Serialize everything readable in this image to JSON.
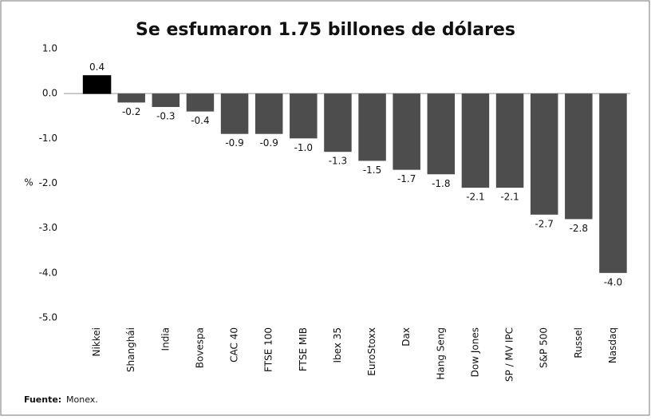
{
  "chart_data": {
    "type": "bar",
    "title": "Se esfumaron 1.75 billones de dólares",
    "y_label": "%",
    "source_label": "Fuente:",
    "source": "Monex.",
    "categories": [
      "Nikkei",
      "Shanghái",
      "India",
      "Bovespa",
      "CAC 40",
      "FTSE 100",
      "FTSE MIB",
      "Ibex 35",
      "EuroStoxx",
      "Dax",
      "Hang Seng",
      "Dow Jones",
      "SP / MV IPC",
      "S&P 500",
      "Russel",
      "Nasdaq"
    ],
    "values": [
      0.4,
      -0.2,
      -0.3,
      -0.4,
      -0.9,
      -0.9,
      -1.0,
      -1.3,
      -1.5,
      -1.7,
      -1.8,
      -2.1,
      -2.1,
      -2.7,
      -2.8,
      -4.0
    ],
    "value_labels": [
      "0.4",
      "-0.2",
      "-0.3",
      "-0.4",
      "-0.9",
      "-0.9",
      "-1.0",
      "-1.3",
      "-1.5",
      "-1.7",
      "-1.8",
      "-2.1",
      "-2.1",
      "-2.7",
      "-2.8",
      "-4.0"
    ],
    "colors": [
      "#000000",
      "#4d4d4d",
      "#4d4d4d",
      "#4d4d4d",
      "#4d4d4d",
      "#4d4d4d",
      "#4d4d4d",
      "#4d4d4d",
      "#4d4d4d",
      "#4d4d4d",
      "#4d4d4d",
      "#4d4d4d",
      "#4d4d4d",
      "#4d4d4d",
      "#4d4d4d",
      "#4d4d4d"
    ],
    "ylim": [
      -5,
      1
    ],
    "yticks": [
      {
        "value": 1,
        "label": "1.0"
      },
      {
        "value": 0,
        "label": "0.0"
      },
      {
        "value": -1,
        "label": "-1.0"
      },
      {
        "value": -2,
        "label": "-2.0"
      },
      {
        "value": -3,
        "label": "-3.0"
      },
      {
        "value": -4,
        "label": "-4.0"
      },
      {
        "value": -5,
        "label": "-5.0"
      }
    ],
    "grid": false
  }
}
